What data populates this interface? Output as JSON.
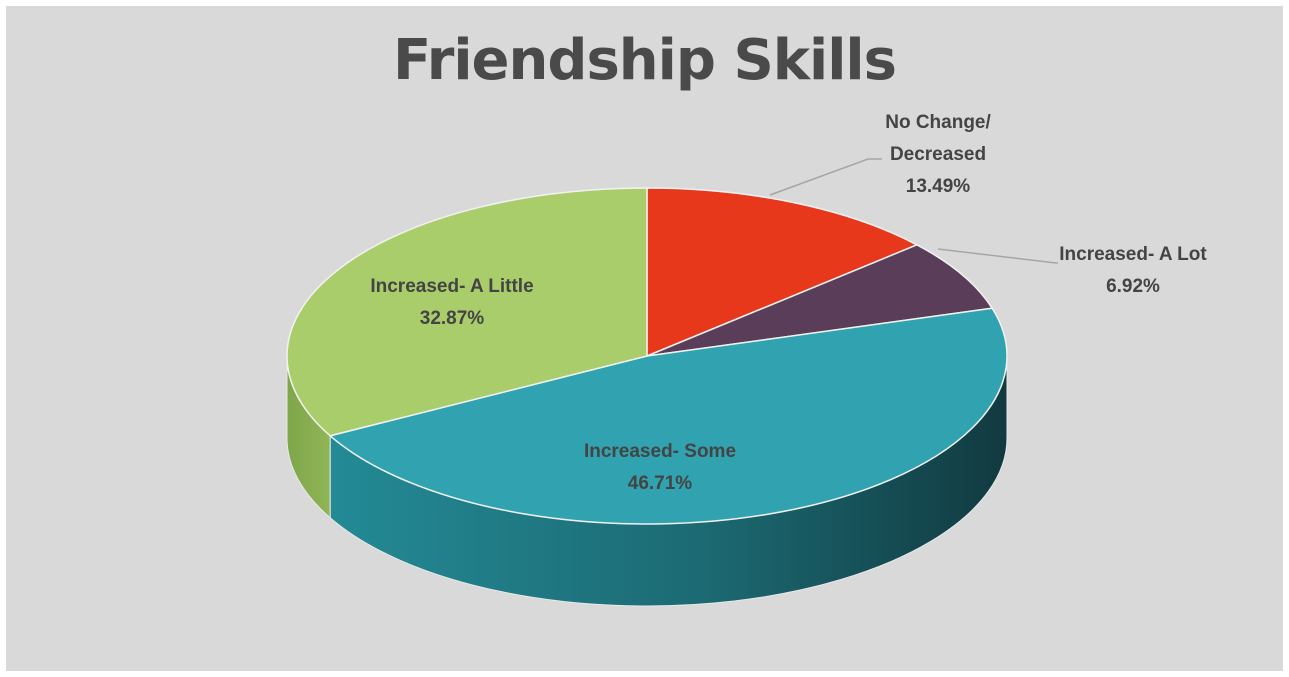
{
  "colors": {
    "background": "#d9d9d9",
    "title": "#4a4a4a",
    "label": "#444444",
    "leader_line": "#a6a6a6"
  },
  "chart_data": {
    "type": "pie",
    "title": "Friendship Skills",
    "style": "3d",
    "legend": "none",
    "slices": [
      {
        "label": "No Change/ Decreased",
        "label_lines": [
          "No Change/",
          "Decreased"
        ],
        "value": 13.49,
        "value_text": "13.49%",
        "color": "#e8381b"
      },
      {
        "label": "Increased- A Lot",
        "label_lines": [
          "Increased- A Lot"
        ],
        "value": 6.92,
        "value_text": "6.92%",
        "color": "#5a3d58"
      },
      {
        "label": "Increased- Some",
        "label_lines": [
          "Increased- Some"
        ],
        "value": 46.71,
        "value_text": "46.71%",
        "color": "#31a3b0"
      },
      {
        "label": "Increased- A Little",
        "label_lines": [
          "Increased- A Little"
        ],
        "value": 32.87,
        "value_text": "32.87%",
        "color": "#a9cd6b"
      }
    ]
  }
}
